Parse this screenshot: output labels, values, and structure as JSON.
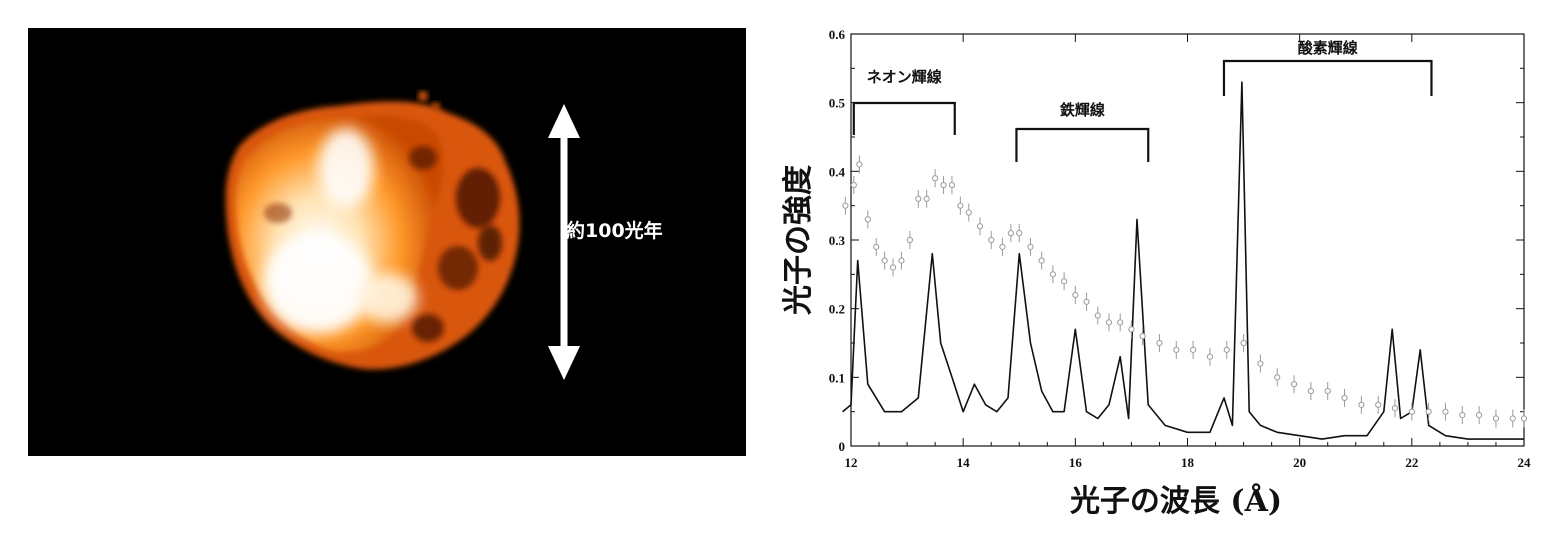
{
  "image": {
    "scale_label": "約100光年"
  },
  "chart_data": {
    "type": "line",
    "xlabel": "光子の波長 (Å)",
    "ylabel": "光子の強度",
    "xlim": [
      12,
      24
    ],
    "ylim": [
      0,
      0.6
    ],
    "xticks": [
      "12",
      "14",
      "16",
      "18",
      "20",
      "22",
      "24"
    ],
    "yticks": [
      "0",
      "0.1",
      "0.2",
      "0.3",
      "0.4",
      "0.5",
      "0.6"
    ],
    "annotations": [
      {
        "label": "ネオン輝線",
        "x_range": [
          12.05,
          13.85
        ]
      },
      {
        "label": "鉄輝線",
        "x_range": [
          14.95,
          17.3
        ]
      },
      {
        "label": "酸素輝線",
        "x_range": [
          18.65,
          22.35
        ]
      }
    ],
    "series": [
      {
        "style": "line",
        "color": "#111111",
        "x": [
          11.85,
          12.0,
          12.12,
          12.3,
          12.6,
          12.9,
          13.2,
          13.45,
          13.6,
          13.8,
          14.0,
          14.2,
          14.4,
          14.6,
          14.8,
          15.0,
          15.2,
          15.4,
          15.6,
          15.8,
          16.0,
          16.2,
          16.4,
          16.6,
          16.8,
          16.95,
          17.1,
          17.3,
          17.6,
          18.0,
          18.4,
          18.65,
          18.8,
          18.97,
          19.1,
          19.3,
          19.6,
          20.0,
          20.4,
          20.8,
          21.2,
          21.5,
          21.65,
          21.8,
          22.0,
          22.15,
          22.3,
          22.6,
          23.0,
          23.5,
          24.0
        ],
        "y": [
          0.05,
          0.06,
          0.27,
          0.09,
          0.05,
          0.05,
          0.07,
          0.28,
          0.15,
          0.1,
          0.05,
          0.09,
          0.06,
          0.05,
          0.07,
          0.28,
          0.15,
          0.08,
          0.05,
          0.05,
          0.17,
          0.05,
          0.04,
          0.06,
          0.13,
          0.04,
          0.33,
          0.06,
          0.03,
          0.02,
          0.02,
          0.07,
          0.03,
          0.53,
          0.05,
          0.03,
          0.02,
          0.015,
          0.01,
          0.015,
          0.015,
          0.05,
          0.17,
          0.04,
          0.05,
          0.14,
          0.03,
          0.015,
          0.01,
          0.01,
          0.01
        ]
      },
      {
        "style": "points",
        "color": "#9a9a9a",
        "x": [
          11.9,
          12.05,
          12.15,
          12.3,
          12.45,
          12.6,
          12.75,
          12.9,
          13.05,
          13.2,
          13.35,
          13.5,
          13.65,
          13.8,
          13.95,
          14.1,
          14.3,
          14.5,
          14.7,
          14.85,
          15.0,
          15.2,
          15.4,
          15.6,
          15.8,
          16.0,
          16.2,
          16.4,
          16.6,
          16.8,
          17.0,
          17.2,
          17.5,
          17.8,
          18.1,
          18.4,
          18.7,
          19.0,
          19.3,
          19.6,
          19.9,
          20.2,
          20.5,
          20.8,
          21.1,
          21.4,
          21.7,
          22.0,
          22.3,
          22.6,
          22.9,
          23.2,
          23.5,
          23.8,
          24.0
        ],
        "y": [
          0.35,
          0.38,
          0.41,
          0.33,
          0.29,
          0.27,
          0.26,
          0.27,
          0.3,
          0.36,
          0.36,
          0.39,
          0.38,
          0.38,
          0.35,
          0.34,
          0.32,
          0.3,
          0.29,
          0.31,
          0.31,
          0.29,
          0.27,
          0.25,
          0.24,
          0.22,
          0.21,
          0.19,
          0.18,
          0.18,
          0.17,
          0.16,
          0.15,
          0.14,
          0.14,
          0.13,
          0.14,
          0.15,
          0.12,
          0.1,
          0.09,
          0.08,
          0.08,
          0.07,
          0.06,
          0.06,
          0.055,
          0.05,
          0.05,
          0.05,
          0.045,
          0.045,
          0.04,
          0.04,
          0.04
        ]
      }
    ]
  }
}
